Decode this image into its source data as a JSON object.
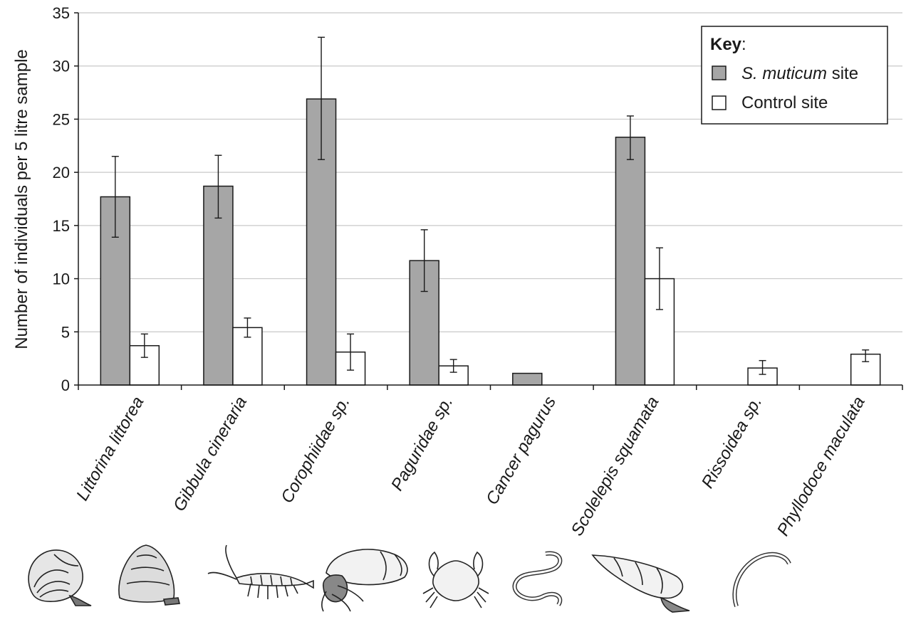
{
  "chart_data": {
    "type": "bar",
    "title": "",
    "ylabel": "Number of individuals per 5 litre sample",
    "xlabel": "",
    "ylim": [
      0,
      35
    ],
    "yticks": [
      0,
      5,
      10,
      15,
      20,
      25,
      30,
      35
    ],
    "grid": true,
    "legend_position": "top-right",
    "categories": [
      "Littorina littorea",
      "Gibbula cineraria",
      "Corophiidae sp.",
      "Paguridae sp.",
      "Cancer pagurus",
      "Scolelepis squamata",
      "Rissoidea sp.",
      "Phyllodoce maculata"
    ],
    "series": [
      {
        "name": "S. muticum site",
        "color": "#a6a6a6",
        "values": [
          17.7,
          18.7,
          26.9,
          11.7,
          1.1,
          23.3,
          0,
          0
        ],
        "err_low": [
          13.9,
          15.7,
          21.2,
          8.8,
          null,
          21.2,
          null,
          null
        ],
        "err_high": [
          21.5,
          21.6,
          32.7,
          14.6,
          null,
          25.3,
          null,
          null
        ]
      },
      {
        "name": "Control site",
        "color": "#ffffff",
        "values": [
          3.7,
          5.4,
          3.1,
          1.8,
          0,
          10.0,
          1.6,
          2.9
        ],
        "err_low": [
          2.6,
          4.5,
          1.4,
          1.2,
          null,
          7.1,
          1.0,
          2.2
        ],
        "err_high": [
          4.8,
          6.3,
          4.8,
          2.4,
          null,
          12.9,
          2.3,
          3.3
        ]
      }
    ],
    "legend": {
      "heading": "Key",
      "heading_suffix": ":",
      "item1_italic": "S. muticum",
      "item1_rest": " site",
      "item2": "Control site"
    },
    "illustrations": [
      "periwinkle-snail-icon",
      "top-shell-snail-icon",
      "amphipod-icon",
      "hermit-crab-icon",
      "edible-crab-icon",
      "bristle-worm-icon",
      "spire-snail-icon",
      "paddle-worm-icon"
    ]
  }
}
